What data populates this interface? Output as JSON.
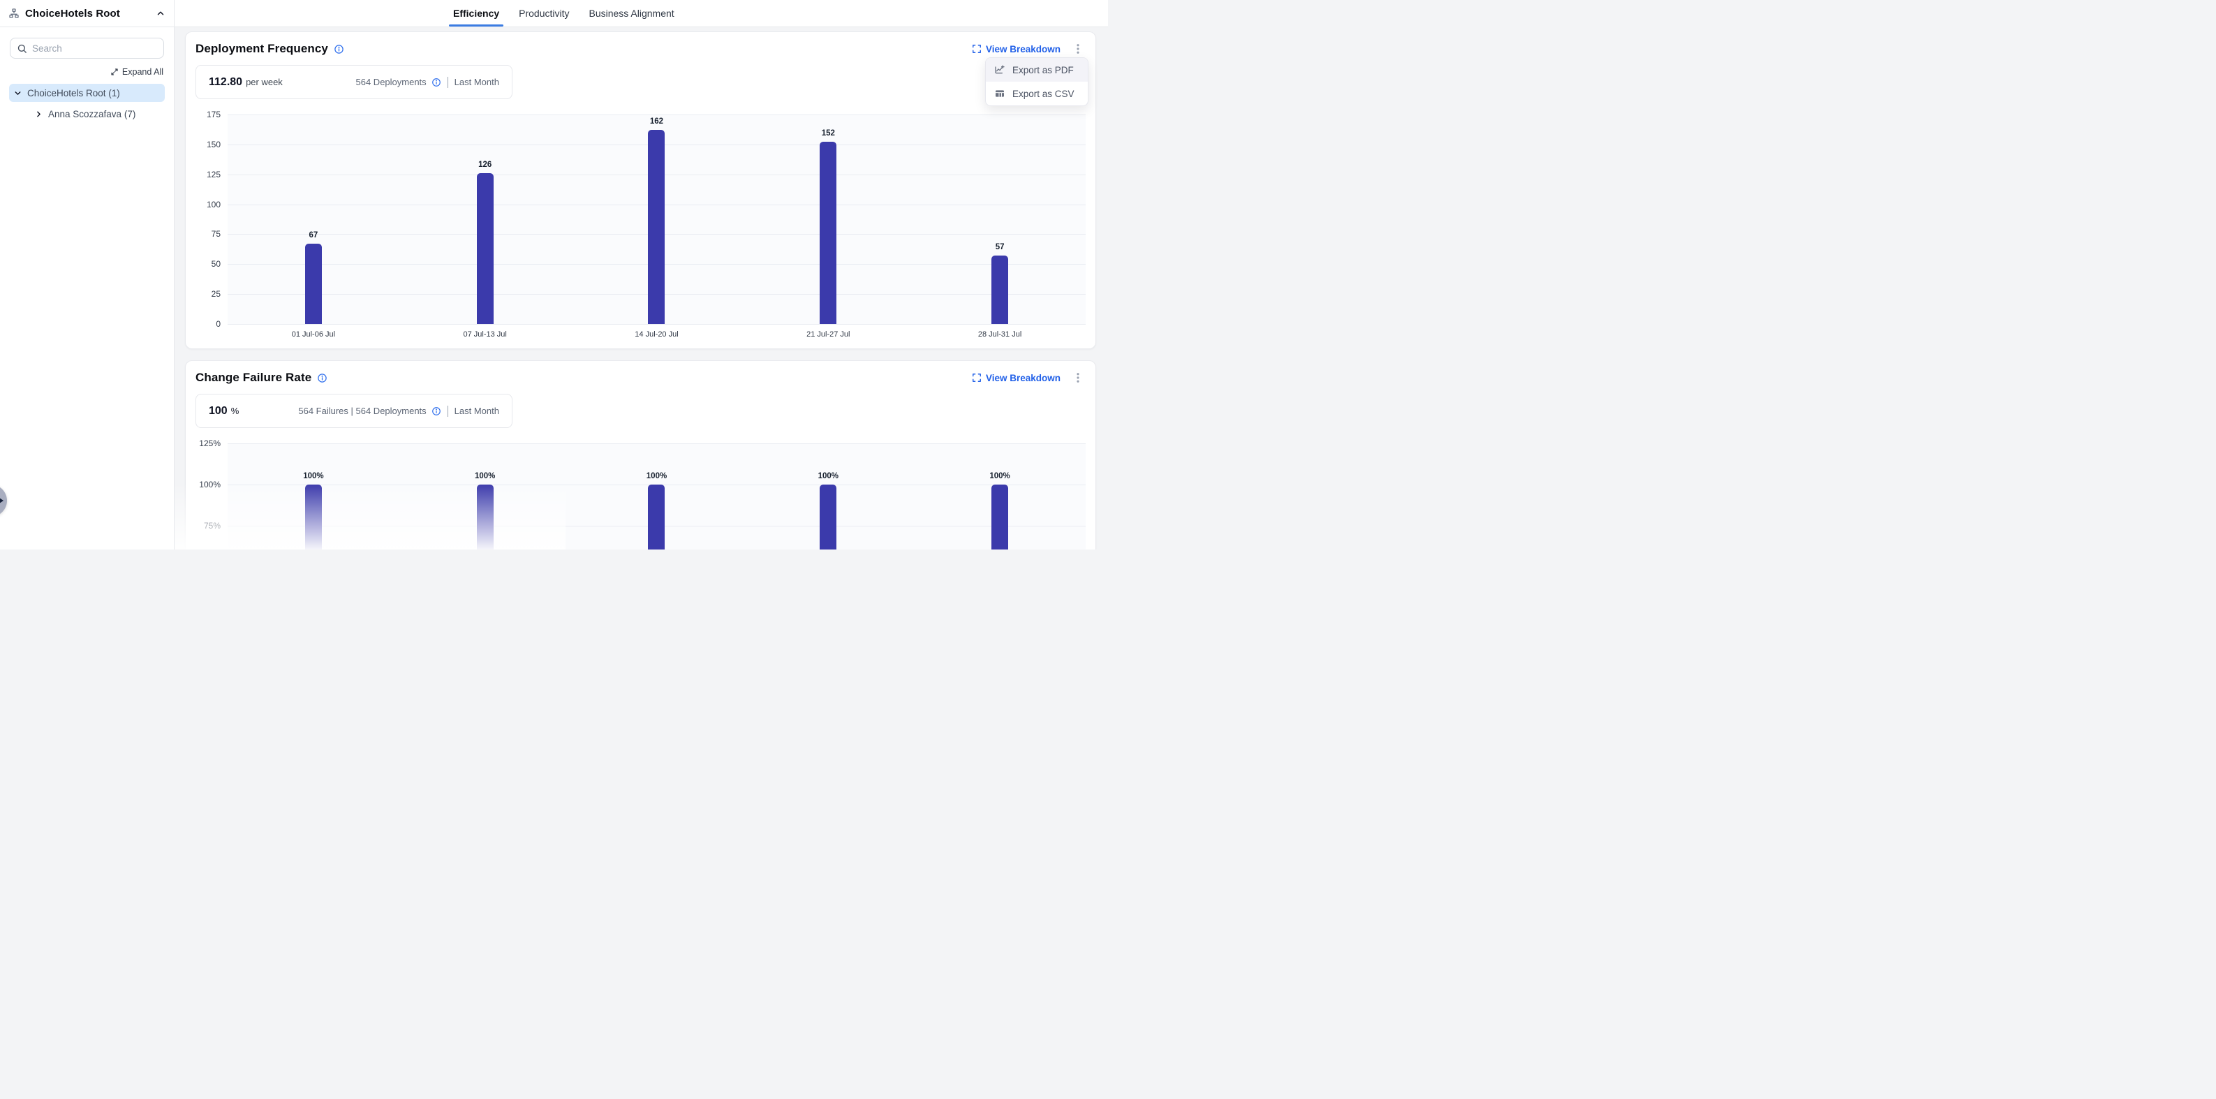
{
  "sidebar": {
    "title": "ChoiceHotels Root",
    "search_placeholder": "Search",
    "expand_all": "Expand All",
    "tree": [
      {
        "label": "ChoiceHotels Root (1)"
      },
      {
        "label": "Anna Scozzafava (7)"
      }
    ]
  },
  "tabs": [
    {
      "label": "Efficiency"
    },
    {
      "label": "Productivity"
    },
    {
      "label": "Business Alignment"
    }
  ],
  "export_menu": {
    "items": [
      {
        "label": "Export as PDF",
        "icon": "chart-line-plus-icon"
      },
      {
        "label": "Export as CSV",
        "icon": "table-icon"
      }
    ]
  },
  "cards": [
    {
      "title": "Deployment Frequency",
      "action_label": "View Breakdown",
      "stat": {
        "value": "112.80",
        "unit": "per week",
        "meta": "564 Deployments",
        "period": "Last Month"
      }
    },
    {
      "title": "Change Failure Rate",
      "action_label": "View Breakdown",
      "stat": {
        "value": "100",
        "unit": "%",
        "meta": "564 Failures | 564 Deployments",
        "period": "Last Month"
      }
    }
  ],
  "chart_data": [
    {
      "type": "bar",
      "title": "Deployment Frequency",
      "categories": [
        "01 Jul-06 Jul",
        "07 Jul-13 Jul",
        "14 Jul-20 Jul",
        "21 Jul-27 Jul",
        "28 Jul-31 Jul"
      ],
      "values": [
        67,
        126,
        162,
        152,
        57
      ],
      "bar_labels": [
        "67",
        "126",
        "162",
        "152",
        "57"
      ],
      "ylim": [
        0,
        175
      ],
      "yticks": [
        0,
        25,
        50,
        75,
        100,
        125,
        150,
        175
      ],
      "ytick_labels": [
        "0",
        "25",
        "50",
        "75",
        "100",
        "125",
        "150",
        "175"
      ],
      "grid": true,
      "legend": "none",
      "bar_color": "#3b3aab"
    },
    {
      "type": "bar",
      "title": "Change Failure Rate",
      "categories": [
        "",
        "",
        "",
        "",
        ""
      ],
      "values": [
        100,
        100,
        100,
        100,
        100
      ],
      "bar_labels": [
        "100%",
        "100%",
        "100%",
        "100%",
        "100%"
      ],
      "ylim": [
        0,
        125
      ],
      "yticks": [
        75,
        100,
        125
      ],
      "ytick_labels": [
        "75%",
        "100%",
        "125%"
      ],
      "grid": true,
      "legend": "none",
      "bar_color": "#3b3aab"
    }
  ],
  "colors": {
    "accent_blue": "#2160e8",
    "bar_indigo": "#3b3aab",
    "tab_underline": "#3b7ce2",
    "selected_row_bg": "#d8eafc"
  }
}
